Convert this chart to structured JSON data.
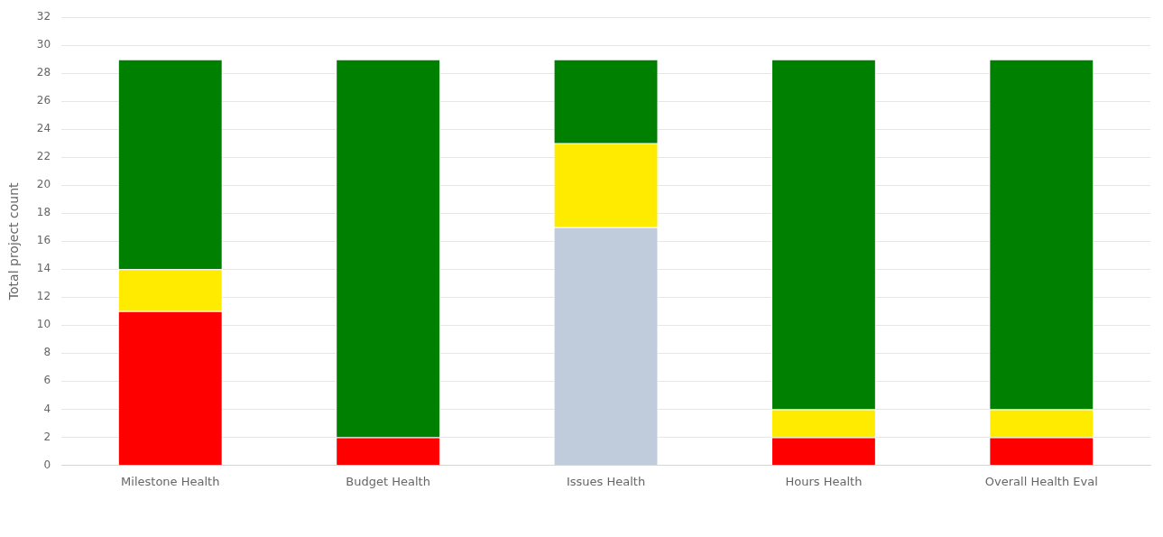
{
  "chart_data": {
    "type": "bar",
    "stacked": true,
    "ylabel": "Total project count",
    "categories": [
      "Milestone Health",
      "Budget Health",
      "Issues Health",
      "Hours Health",
      "Overall Health Eval"
    ],
    "series": [
      {
        "color": "#ff0000",
        "values": [
          11,
          2,
          null,
          2,
          2
        ]
      },
      {
        "color": "#c0cbdc",
        "values": [
          null,
          null,
          17,
          null,
          null
        ]
      },
      {
        "color": "#ffeb00",
        "values": [
          3,
          null,
          6,
          2,
          2
        ]
      },
      {
        "color": "#008000",
        "values": [
          15,
          27,
          6,
          25,
          25
        ]
      }
    ],
    "ylim": [
      0,
      32
    ],
    "yticks": [
      0,
      2,
      4,
      6,
      8,
      10,
      12,
      14,
      16,
      18,
      20,
      22,
      24,
      26,
      28,
      30,
      32
    ],
    "grid": "y",
    "legend": false
  }
}
